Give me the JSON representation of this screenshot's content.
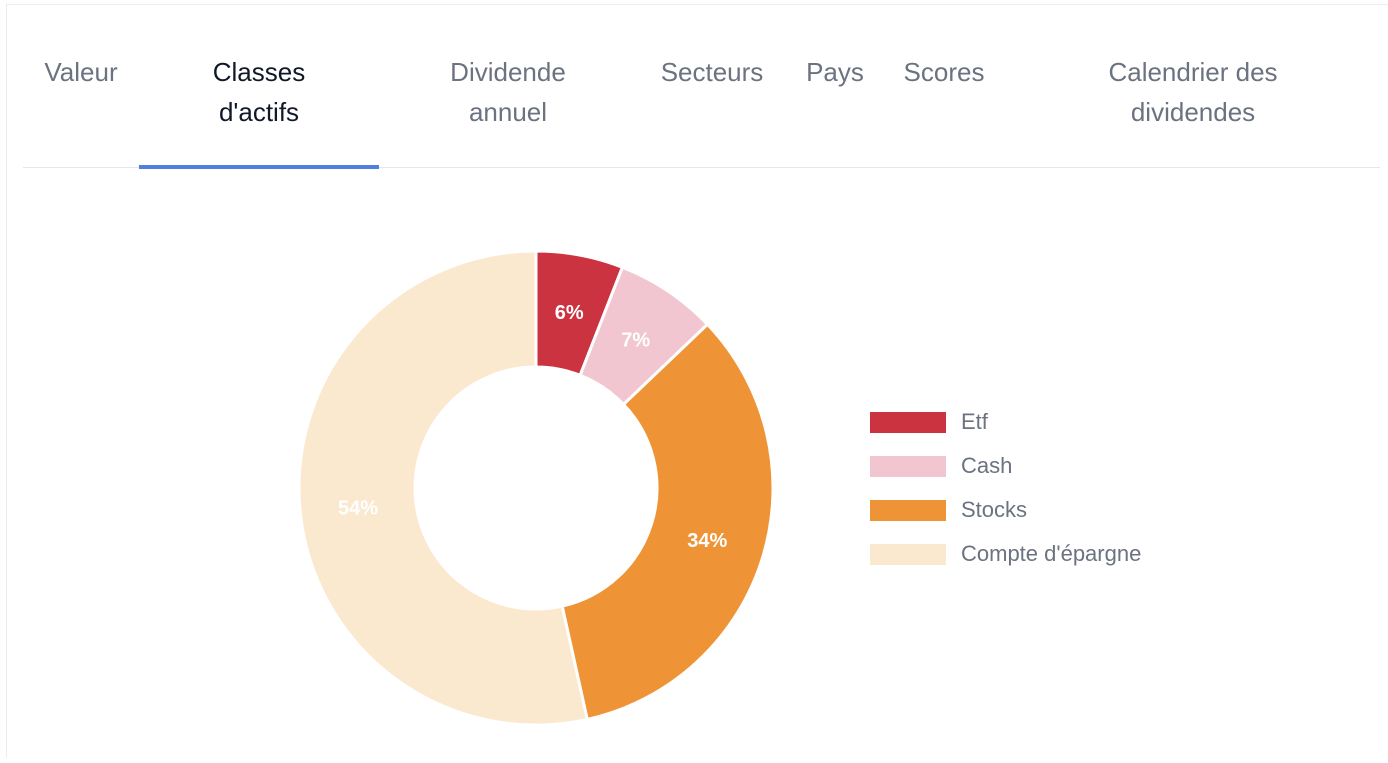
{
  "tabs": [
    {
      "label_line1": "Valeur",
      "label_line2": "",
      "active": false
    },
    {
      "label_line1": "Classes",
      "label_line2": "d'actifs",
      "active": true
    },
    {
      "label_line1": "Dividende",
      "label_line2": "annuel",
      "active": false
    },
    {
      "label_line1": "Secteurs",
      "label_line2": "",
      "active": false
    },
    {
      "label_line1": "Pays",
      "label_line2": "",
      "active": false
    },
    {
      "label_line1": "Scores",
      "label_line2": "",
      "active": false
    },
    {
      "label_line1": "Calendrier des",
      "label_line2": "dividendes",
      "active": false
    }
  ],
  "colors": {
    "accent": "#4f7fe0",
    "etf": "#cc3340",
    "cash": "#f2c6d0",
    "stocks": "#ef9436",
    "savings": "#fae8cf"
  },
  "chart_data": {
    "type": "pie",
    "style": "donut",
    "categories": [
      "Etf",
      "Cash",
      "Stocks",
      "Compte d'épargne"
    ],
    "values": [
      6,
      7,
      34,
      54
    ],
    "labels": [
      "6%",
      "7%",
      "34%",
      "54%"
    ],
    "legend_position": "right"
  }
}
